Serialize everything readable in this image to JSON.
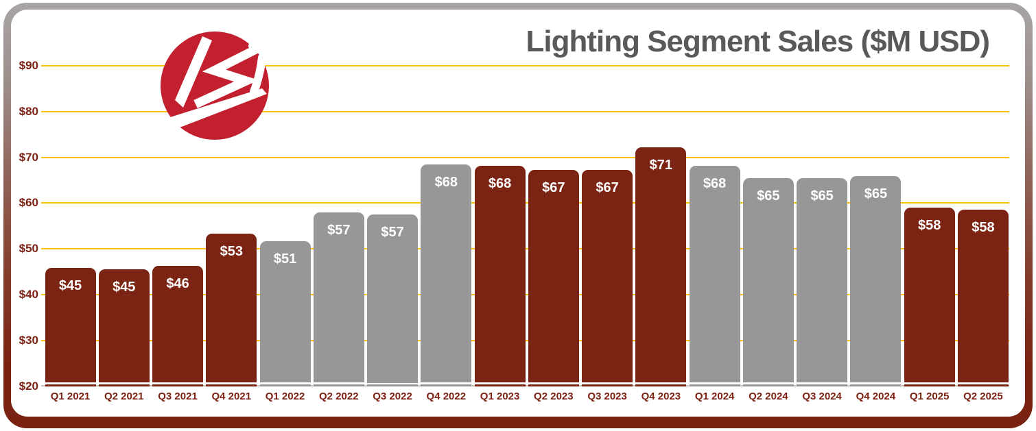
{
  "header": {
    "title": "Lighting Segment Sales ($M USD)"
  },
  "logo": {
    "icon": "lsi-logo",
    "company": "LSI",
    "circle_color": "#c2202f",
    "mark_color": "#ffffff"
  },
  "colors": {
    "title_text": "#58595b",
    "gridline_gold": "#ffc000",
    "axis_label_red": "#7d2112",
    "bar_dark_red": "#7b2413",
    "bar_gray": "#979797",
    "value_label_white": "#ffffff",
    "frame_gradient_top": "#a8a5a5",
    "frame_gradient_bottom": "#7a2313",
    "baseline_line": "#cdbcb5",
    "card_background": "#ffffff"
  },
  "chart_data": {
    "type": "bar",
    "title": "Lighting Segment Sales ($M USD)",
    "unit": "$M USD",
    "categories": [
      "Q1 2021",
      "Q2 2021",
      "Q3 2021",
      "Q4 2021",
      "Q1 2022",
      "Q2 2022",
      "Q3 2022",
      "Q4 2022",
      "Q1 2023",
      "Q2 2023",
      "Q3 2023",
      "Q4 2023",
      "Q1 2024",
      "Q2 2024",
      "Q3 2024",
      "Q4 2024",
      "Q1 2025",
      "Q2 2025"
    ],
    "values": [
      45,
      45,
      46,
      53,
      51,
      57,
      57,
      68,
      68,
      67,
      67,
      71,
      68,
      65,
      65,
      65,
      58,
      58
    ],
    "data_labels": [
      "$45",
      "$45",
      "$46",
      "$53",
      "$51",
      "$57",
      "$57",
      "$68",
      "$68",
      "$67",
      "$67",
      "$71",
      "$68",
      "$65",
      "$65",
      "$65",
      "$58",
      "$58"
    ],
    "bar_heights_estimated": [
      45.8,
      45.5,
      46.3,
      53.3,
      51.7,
      57.9,
      57.5,
      68.4,
      68.2,
      67.3,
      67.2,
      72.2,
      68.1,
      65.5,
      65.5,
      65.9,
      59.0,
      58.6
    ],
    "series_colors": [
      "red",
      "red",
      "red",
      "red",
      "gray",
      "gray",
      "gray",
      "gray",
      "red",
      "red",
      "red",
      "red",
      "gray",
      "gray",
      "gray",
      "gray",
      "red",
      "red"
    ],
    "color_map": {
      "red": "#7b2413",
      "gray": "#979797"
    },
    "xlabel": "",
    "ylabel": "",
    "ylim": [
      20,
      90
    ],
    "yticks": [
      {
        "value": 20,
        "label": "$20"
      },
      {
        "value": 30,
        "label": "$30"
      },
      {
        "value": 40,
        "label": "$40"
      },
      {
        "value": 50,
        "label": "$50"
      },
      {
        "value": 60,
        "label": "$60"
      },
      {
        "value": 70,
        "label": "$70"
      },
      {
        "value": 80,
        "label": "$80"
      },
      {
        "value": 90,
        "label": "$90"
      }
    ],
    "gridlines": {
      "values": [
        30,
        40,
        50,
        60,
        70,
        80,
        90
      ],
      "color": "#ffc000",
      "orientation": "horizontal"
    },
    "legend": "none",
    "value_labels_position": "inside-top",
    "value_label_color": "#ffffff",
    "axis_label_color": "#7d2112"
  }
}
